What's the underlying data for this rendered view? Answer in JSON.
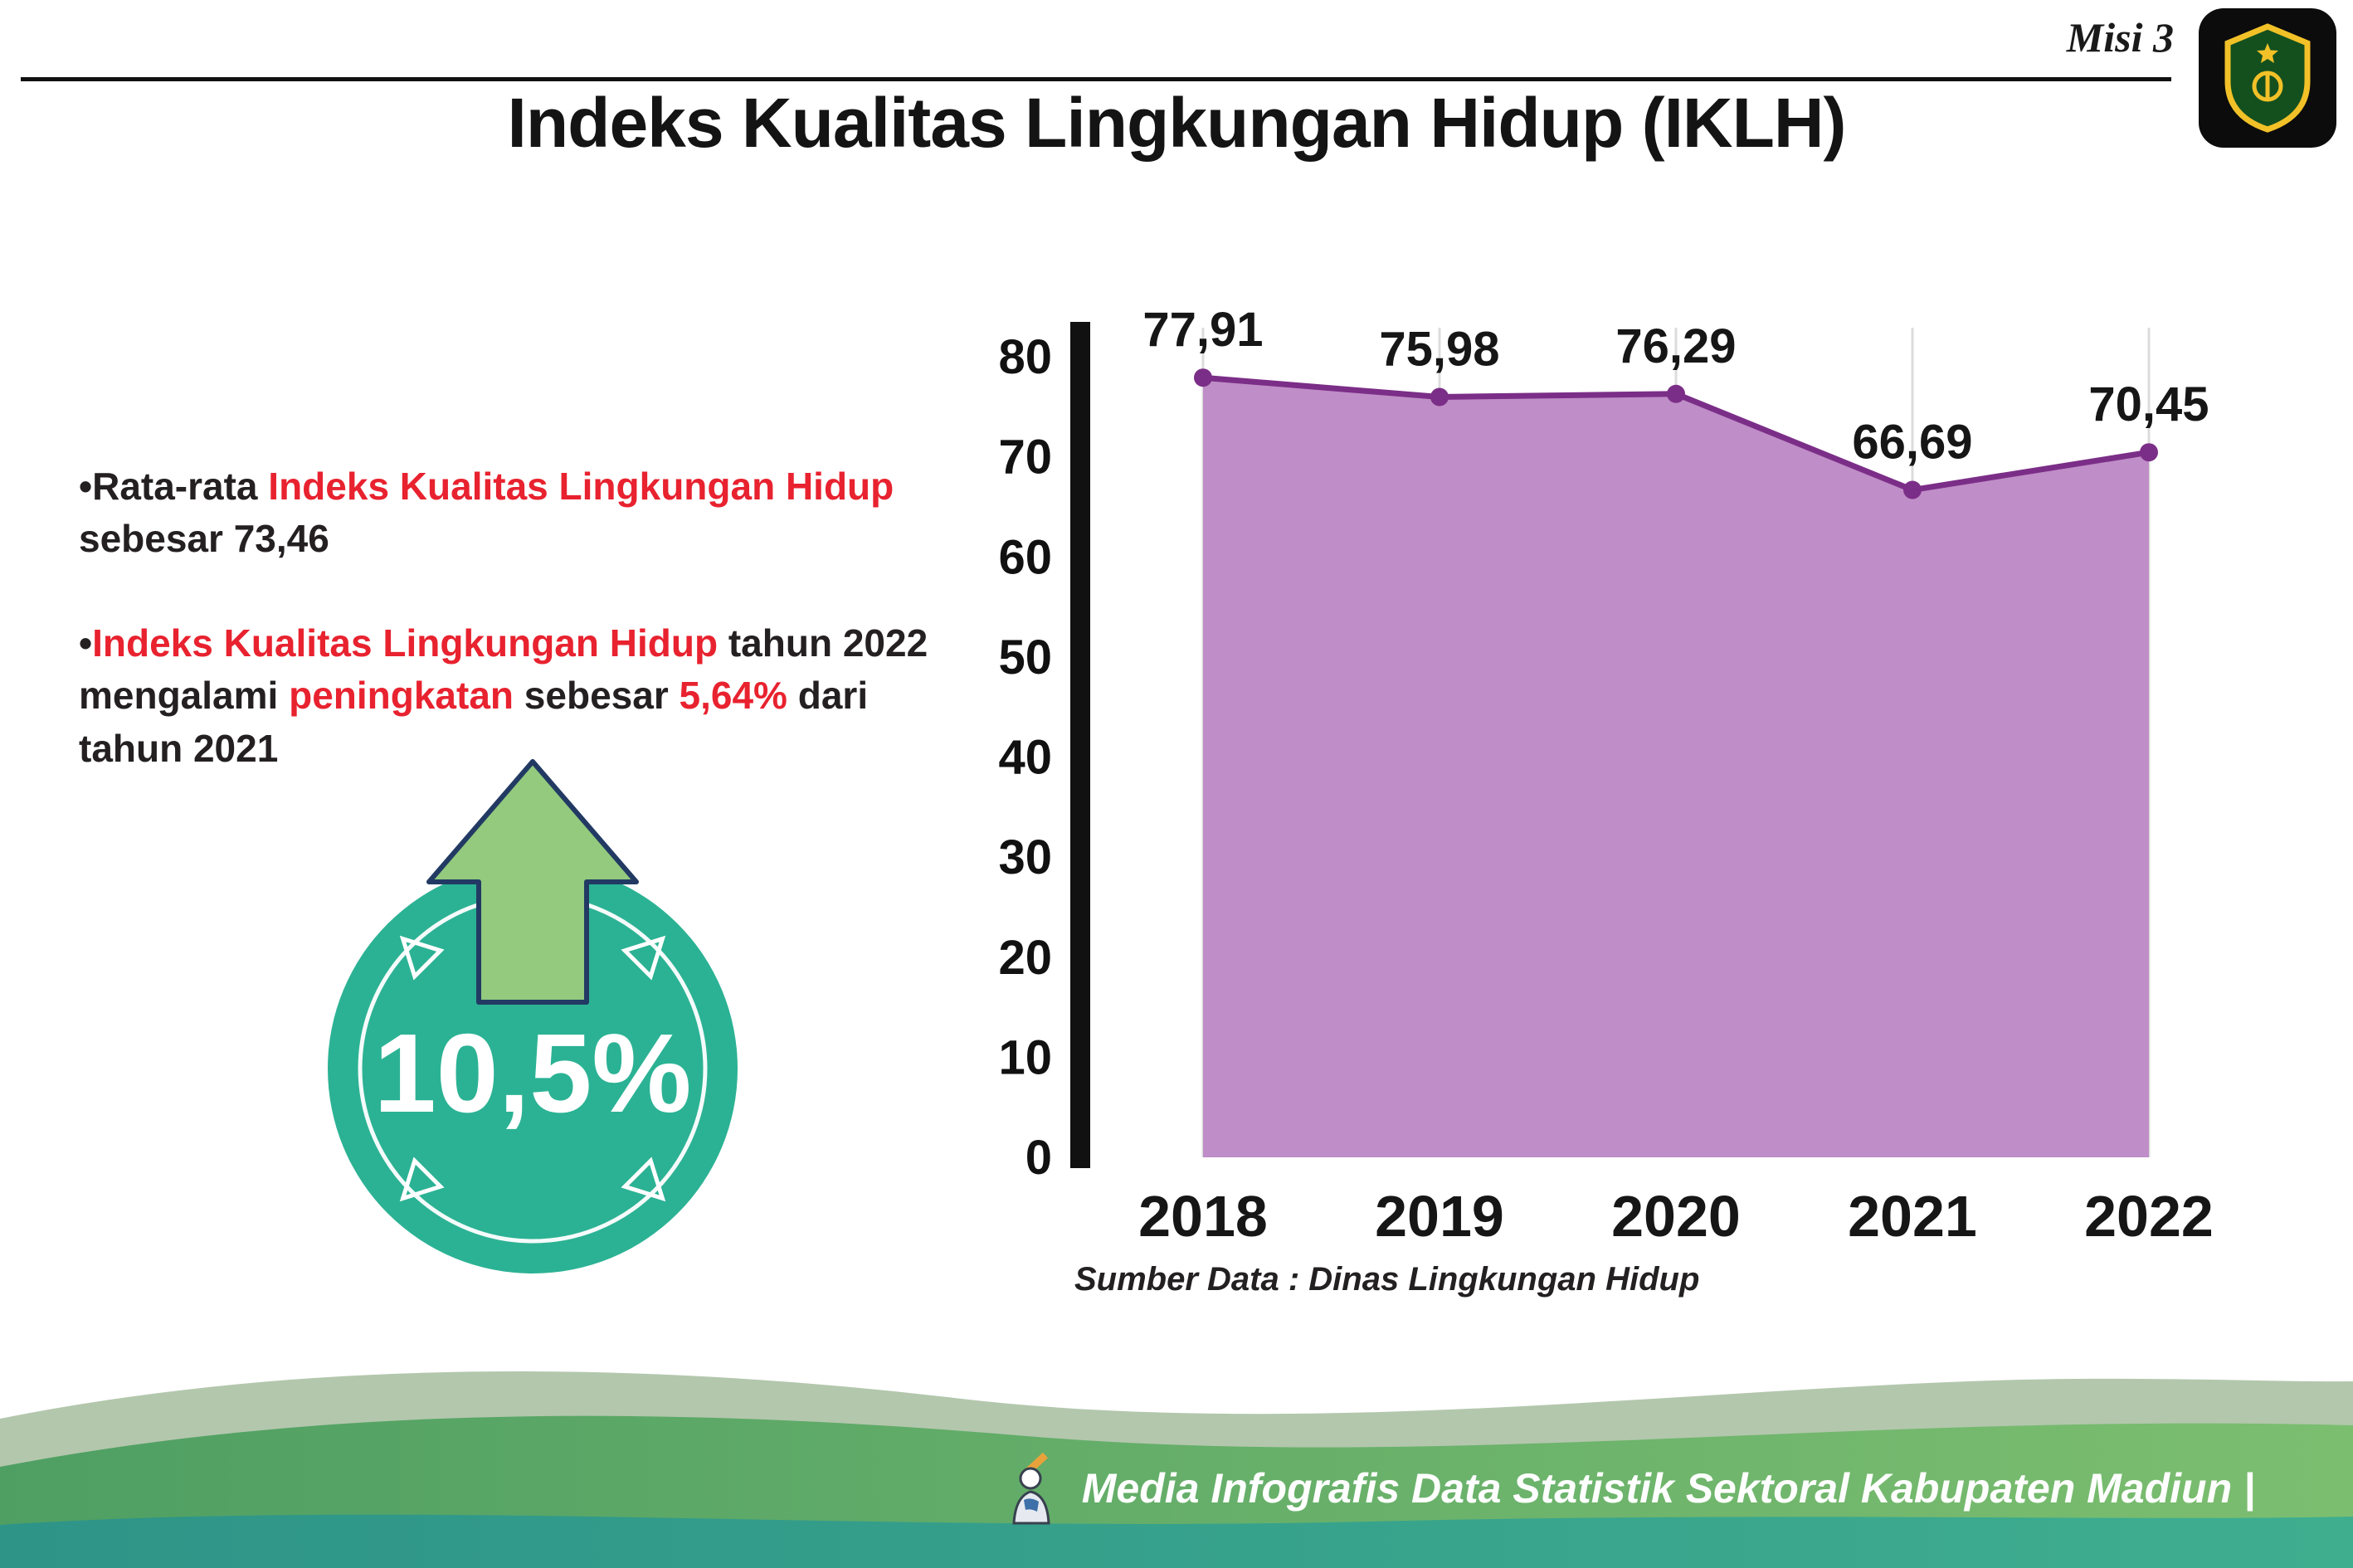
{
  "header": {
    "misi_label": "Misi 3",
    "title": "Indeks Kualitas Lingkungan Hidup (IKLH)",
    "logo_name": "Kabupaten Madiun"
  },
  "bullets": [
    {
      "segments": [
        {
          "text": "•Rata-rata ",
          "color": "black"
        },
        {
          "text": "Indeks Kualitas Lingkungan Hidup",
          "color": "red"
        },
        {
          "text": " sebesar 73,46",
          "color": "black"
        }
      ]
    },
    {
      "segments": [
        {
          "text": "•",
          "color": "black"
        },
        {
          "text": "Indeks Kualitas Lingkungan Hidup",
          "color": "red"
        },
        {
          "text": " tahun 2022 mengalami ",
          "color": "black"
        },
        {
          "text": "peningkatan",
          "color": "red"
        },
        {
          "text": " sebesar ",
          "color": "black"
        },
        {
          "text": "5,64%",
          "color": "red"
        },
        {
          "text": " dari tahun 2021",
          "color": "black"
        }
      ]
    }
  ],
  "badge": {
    "value": "10,5%",
    "circle_color": "#2bb294",
    "arrow_color": "#93ca7e"
  },
  "chart_data": {
    "type": "area",
    "title": "",
    "categories": [
      "2018",
      "2019",
      "2020",
      "2021",
      "2022"
    ],
    "values": [
      77.91,
      75.98,
      76.29,
      66.69,
      70.45
    ],
    "value_labels": [
      "77,91",
      "75,98",
      "76,29",
      "66,69",
      "70,45"
    ],
    "ylim": [
      0,
      80
    ],
    "yticks": [
      0,
      10,
      20,
      30,
      40,
      50,
      60,
      70,
      80
    ],
    "grid": "vertical",
    "legend": "none",
    "area_color": "#bf8dc7",
    "line_color": "#7b2e87",
    "axis_color": "#111111",
    "source": "Sumber Data : Dinas Lingkungan Hidup"
  },
  "footer": {
    "caption": "Media Infografis Data Statistik Sektoral Kabupaten Madiun |"
  },
  "colors": {
    "accent_red": "#e8222f",
    "badge_teal": "#2bb294",
    "arrow_green": "#93ca7e",
    "area_purple": "#bf8dc7",
    "line_purple": "#7b2e87",
    "footer_green_dark": "#4f9f63",
    "footer_green_light": "#7cbe70",
    "footer_teal": "#2e9488"
  }
}
